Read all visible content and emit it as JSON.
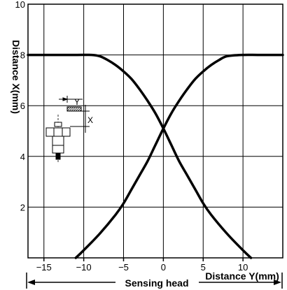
{
  "chart_data": {
    "type": "line",
    "ylabel": "Distance X(mm)",
    "xlabel": "Distance Y(mm)",
    "annotation": "Sensing head",
    "xlim": [
      -17,
      15
    ],
    "ylim": [
      0,
      10
    ],
    "x_ticks": [
      -15,
      -10,
      -5,
      0,
      5,
      10
    ],
    "y_ticks": [
      2,
      4,
      6,
      8,
      10
    ],
    "x_tick_labels": [
      "−15",
      "−10",
      "−5",
      "0",
      "5",
      "10"
    ],
    "y_tick_labels": [
      "2",
      "4",
      "6",
      "8",
      "10"
    ],
    "grid": true,
    "inset_labels": {
      "y": "Y",
      "x": "X"
    },
    "series": [
      {
        "x": [
          -17,
          -14,
          -11,
          -9,
          -8,
          -7,
          -6,
          -5,
          -4,
          -3,
          -2,
          -1,
          0,
          1,
          2,
          3,
          4,
          5,
          6,
          8,
          10,
          11
        ],
        "y": [
          8,
          8,
          8,
          8,
          7.95,
          7.8,
          7.6,
          7.35,
          7.05,
          6.65,
          6.2,
          5.7,
          5.1,
          4.45,
          3.8,
          3.25,
          2.7,
          2.15,
          1.7,
          0.95,
          0.3,
          0
        ]
      },
      {
        "x": [
          -11,
          -10,
          -8,
          -6,
          -5,
          -4,
          -3,
          -2,
          -1,
          0,
          1,
          2,
          3,
          4,
          5,
          6,
          7,
          8,
          10,
          12,
          15
        ],
        "y": [
          0,
          0.3,
          0.95,
          1.7,
          2.15,
          2.7,
          3.25,
          3.8,
          4.45,
          5.1,
          5.7,
          6.2,
          6.65,
          7.05,
          7.35,
          7.6,
          7.8,
          7.95,
          8,
          8,
          8
        ]
      }
    ]
  }
}
